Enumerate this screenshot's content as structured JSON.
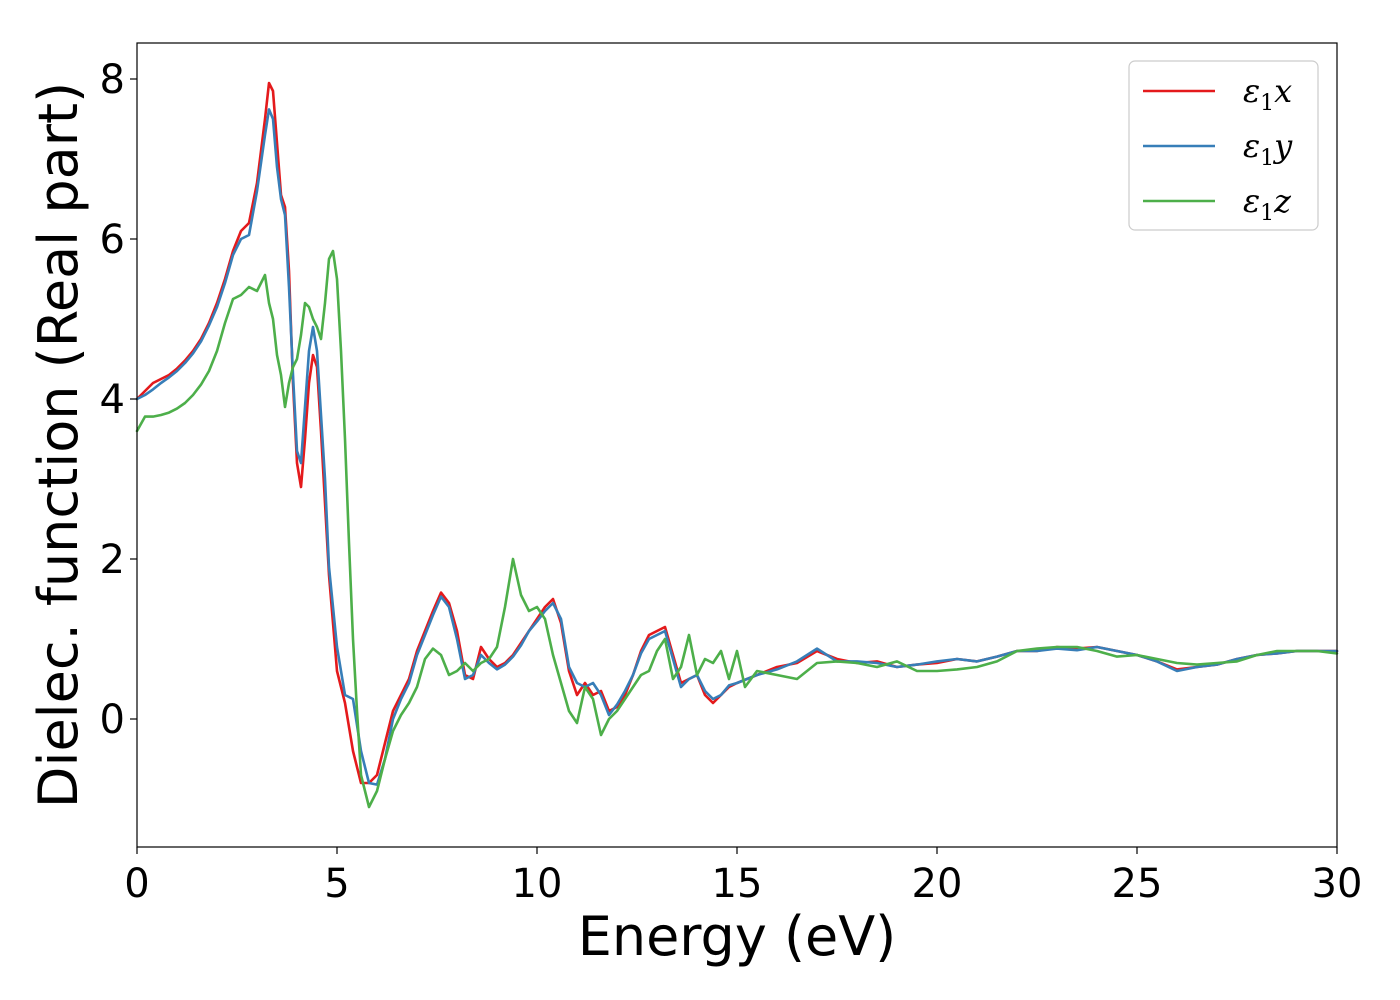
{
  "chart_data": {
    "type": "line",
    "title": "",
    "xlabel": "Energy (eV)",
    "ylabel": "Dielec. function (Real part)",
    "xlim": [
      0,
      30
    ],
    "ylim": [
      -1.6,
      8.45
    ],
    "xticks": [
      0,
      5,
      10,
      15,
      20,
      25,
      30
    ],
    "yticks": [
      0,
      2,
      4,
      6,
      8
    ],
    "grid": false,
    "legend_position": "top-right",
    "series": [
      {
        "name": "ε1x",
        "label_base": "ε",
        "label_sub": "1",
        "label_tail": "x",
        "color": "#e41a1c",
        "x": [
          0,
          0.2,
          0.4,
          0.6,
          0.8,
          1.0,
          1.2,
          1.4,
          1.6,
          1.8,
          2.0,
          2.2,
          2.4,
          2.6,
          2.8,
          3.0,
          3.2,
          3.3,
          3.4,
          3.5,
          3.6,
          3.7,
          3.8,
          3.9,
          4.0,
          4.1,
          4.2,
          4.3,
          4.4,
          4.5,
          4.6,
          4.7,
          4.8,
          5.0,
          5.2,
          5.4,
          5.6,
          5.8,
          6.0,
          6.2,
          6.4,
          6.6,
          6.8,
          7.0,
          7.2,
          7.4,
          7.6,
          7.8,
          8.0,
          8.2,
          8.4,
          8.6,
          8.8,
          9.0,
          9.2,
          9.4,
          9.6,
          9.8,
          10.0,
          10.2,
          10.4,
          10.6,
          10.8,
          11.0,
          11.2,
          11.4,
          11.6,
          11.8,
          12.0,
          12.2,
          12.4,
          12.6,
          12.8,
          13.0,
          13.2,
          13.4,
          13.6,
          13.8,
          14.0,
          14.2,
          14.4,
          14.6,
          14.8,
          15.0,
          15.5,
          16.0,
          16.5,
          17.0,
          17.5,
          18.0,
          18.5,
          19.0,
          19.5,
          20.0,
          20.5,
          21.0,
          21.5,
          22.0,
          22.5,
          23.0,
          23.5,
          24.0,
          24.5,
          25.0,
          25.5,
          26.0,
          26.5,
          27.0,
          27.5,
          28.0,
          28.5,
          29.0,
          29.5,
          30.0
        ],
        "y": [
          4.0,
          4.1,
          4.2,
          4.25,
          4.3,
          4.38,
          4.48,
          4.6,
          4.75,
          4.95,
          5.2,
          5.5,
          5.85,
          6.1,
          6.2,
          6.7,
          7.5,
          7.95,
          7.85,
          7.2,
          6.55,
          6.4,
          5.6,
          4.2,
          3.2,
          2.9,
          3.5,
          4.2,
          4.55,
          4.4,
          3.6,
          2.7,
          1.8,
          0.6,
          0.2,
          -0.4,
          -0.8,
          -0.8,
          -0.7,
          -0.3,
          0.1,
          0.3,
          0.5,
          0.85,
          1.1,
          1.35,
          1.58,
          1.45,
          1.1,
          0.55,
          0.5,
          0.9,
          0.75,
          0.65,
          0.7,
          0.8,
          0.95,
          1.1,
          1.25,
          1.4,
          1.5,
          1.2,
          0.6,
          0.3,
          0.45,
          0.3,
          0.35,
          0.1,
          0.15,
          0.3,
          0.55,
          0.85,
          1.05,
          1.1,
          1.15,
          0.8,
          0.45,
          0.5,
          0.55,
          0.3,
          0.2,
          0.3,
          0.4,
          0.45,
          0.55,
          0.65,
          0.7,
          0.85,
          0.75,
          0.7,
          0.72,
          0.65,
          0.68,
          0.7,
          0.75,
          0.72,
          0.78,
          0.85,
          0.85,
          0.9,
          0.88,
          0.9,
          0.85,
          0.8,
          0.72,
          0.62,
          0.65,
          0.68,
          0.75,
          0.8,
          0.82,
          0.85,
          0.85,
          0.85
        ]
      },
      {
        "name": "ε1y",
        "label_base": "ε",
        "label_sub": "1",
        "label_tail": "y",
        "color": "#377eb8",
        "x": [
          0,
          0.2,
          0.4,
          0.6,
          0.8,
          1.0,
          1.2,
          1.4,
          1.6,
          1.8,
          2.0,
          2.2,
          2.4,
          2.6,
          2.8,
          3.0,
          3.2,
          3.3,
          3.4,
          3.5,
          3.6,
          3.7,
          3.8,
          3.9,
          4.0,
          4.1,
          4.2,
          4.3,
          4.4,
          4.5,
          4.6,
          4.7,
          4.8,
          5.0,
          5.2,
          5.4,
          5.6,
          5.8,
          6.0,
          6.2,
          6.4,
          6.6,
          6.8,
          7.0,
          7.2,
          7.4,
          7.6,
          7.8,
          8.0,
          8.2,
          8.4,
          8.6,
          8.8,
          9.0,
          9.2,
          9.4,
          9.6,
          9.8,
          10.0,
          10.2,
          10.4,
          10.6,
          10.8,
          11.0,
          11.2,
          11.4,
          11.6,
          11.8,
          12.0,
          12.2,
          12.4,
          12.6,
          12.8,
          13.0,
          13.2,
          13.4,
          13.6,
          13.8,
          14.0,
          14.2,
          14.4,
          14.6,
          14.8,
          15.0,
          15.5,
          16.0,
          16.5,
          17.0,
          17.5,
          18.0,
          18.5,
          19.0,
          19.5,
          20.0,
          20.5,
          21.0,
          21.5,
          22.0,
          22.5,
          23.0,
          23.5,
          24.0,
          24.5,
          25.0,
          25.5,
          26.0,
          26.5,
          27.0,
          27.5,
          28.0,
          28.5,
          29.0,
          29.5,
          30.0
        ],
        "y": [
          4.0,
          4.05,
          4.12,
          4.2,
          4.27,
          4.35,
          4.45,
          4.57,
          4.72,
          4.92,
          5.15,
          5.45,
          5.8,
          6.0,
          6.05,
          6.6,
          7.3,
          7.62,
          7.5,
          6.9,
          6.5,
          6.3,
          5.4,
          4.3,
          3.35,
          3.2,
          3.9,
          4.6,
          4.9,
          4.6,
          3.8,
          3.0,
          1.9,
          0.9,
          0.3,
          0.25,
          -0.4,
          -0.8,
          -0.82,
          -0.5,
          0.0,
          0.25,
          0.45,
          0.8,
          1.05,
          1.3,
          1.53,
          1.4,
          1.0,
          0.5,
          0.55,
          0.8,
          0.7,
          0.62,
          0.68,
          0.78,
          0.92,
          1.1,
          1.22,
          1.35,
          1.45,
          1.25,
          0.65,
          0.45,
          0.4,
          0.45,
          0.3,
          0.05,
          0.18,
          0.35,
          0.55,
          0.82,
          1.0,
          1.05,
          1.1,
          0.75,
          0.4,
          0.5,
          0.55,
          0.35,
          0.25,
          0.3,
          0.42,
          0.45,
          0.55,
          0.62,
          0.72,
          0.88,
          0.72,
          0.72,
          0.7,
          0.65,
          0.68,
          0.72,
          0.75,
          0.72,
          0.78,
          0.85,
          0.85,
          0.88,
          0.86,
          0.9,
          0.85,
          0.8,
          0.72,
          0.6,
          0.65,
          0.68,
          0.75,
          0.8,
          0.82,
          0.85,
          0.85,
          0.85
        ]
      },
      {
        "name": "ε1z",
        "label_base": "ε",
        "label_sub": "1",
        "label_tail": "z",
        "color": "#4daf4a",
        "x": [
          0,
          0.2,
          0.4,
          0.6,
          0.8,
          1.0,
          1.2,
          1.4,
          1.6,
          1.8,
          2.0,
          2.2,
          2.4,
          2.6,
          2.8,
          3.0,
          3.1,
          3.2,
          3.3,
          3.4,
          3.5,
          3.6,
          3.7,
          3.8,
          3.9,
          4.0,
          4.1,
          4.2,
          4.3,
          4.4,
          4.5,
          4.6,
          4.7,
          4.8,
          4.9,
          5.0,
          5.1,
          5.2,
          5.3,
          5.4,
          5.5,
          5.6,
          5.8,
          6.0,
          6.2,
          6.4,
          6.6,
          6.8,
          7.0,
          7.2,
          7.4,
          7.6,
          7.8,
          8.0,
          8.2,
          8.4,
          8.6,
          8.8,
          9.0,
          9.2,
          9.4,
          9.6,
          9.8,
          10.0,
          10.2,
          10.4,
          10.6,
          10.8,
          11.0,
          11.2,
          11.4,
          11.6,
          11.8,
          12.0,
          12.2,
          12.4,
          12.6,
          12.8,
          13.0,
          13.2,
          13.4,
          13.6,
          13.8,
          14.0,
          14.2,
          14.4,
          14.6,
          14.8,
          15.0,
          15.2,
          15.5,
          16.0,
          16.5,
          17.0,
          17.5,
          18.0,
          18.5,
          19.0,
          19.5,
          20.0,
          20.5,
          21.0,
          21.5,
          22.0,
          22.5,
          23.0,
          23.5,
          24.0,
          24.5,
          25.0,
          25.5,
          26.0,
          26.5,
          27.0,
          27.5,
          28.0,
          28.5,
          29.0,
          29.5,
          30.0
        ],
        "y": [
          3.6,
          3.78,
          3.78,
          3.8,
          3.83,
          3.88,
          3.95,
          4.05,
          4.18,
          4.35,
          4.6,
          4.95,
          5.25,
          5.3,
          5.4,
          5.35,
          5.45,
          5.55,
          5.2,
          5.0,
          4.55,
          4.3,
          3.9,
          4.2,
          4.4,
          4.5,
          4.8,
          5.2,
          5.15,
          5.0,
          4.9,
          4.75,
          5.2,
          5.75,
          5.85,
          5.5,
          4.6,
          3.5,
          2.2,
          1.0,
          0.1,
          -0.7,
          -1.1,
          -0.9,
          -0.5,
          -0.15,
          0.05,
          0.2,
          0.4,
          0.75,
          0.88,
          0.8,
          0.55,
          0.6,
          0.7,
          0.6,
          0.7,
          0.75,
          0.9,
          1.4,
          2.0,
          1.55,
          1.35,
          1.4,
          1.25,
          0.8,
          0.45,
          0.1,
          -0.05,
          0.4,
          0.25,
          -0.2,
          0.0,
          0.1,
          0.25,
          0.4,
          0.55,
          0.6,
          0.85,
          1.0,
          0.5,
          0.65,
          1.05,
          0.55,
          0.75,
          0.7,
          0.85,
          0.5,
          0.85,
          0.4,
          0.6,
          0.55,
          0.5,
          0.7,
          0.72,
          0.7,
          0.65,
          0.72,
          0.6,
          0.6,
          0.62,
          0.65,
          0.72,
          0.85,
          0.88,
          0.9,
          0.9,
          0.85,
          0.78,
          0.8,
          0.75,
          0.7,
          0.68,
          0.7,
          0.72,
          0.8,
          0.85,
          0.85,
          0.85,
          0.82
        ]
      }
    ]
  }
}
